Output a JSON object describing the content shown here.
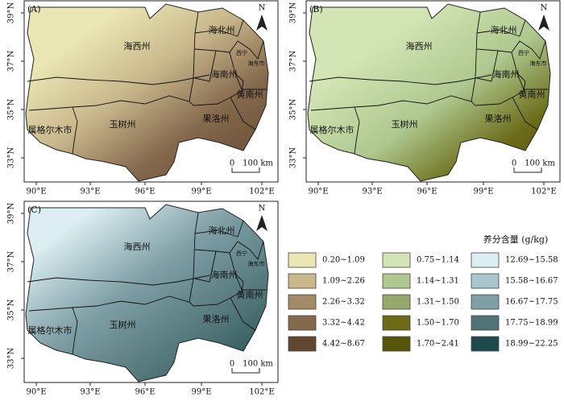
{
  "panels": [
    {
      "label": "(A)"
    },
    {
      "label": "(B)"
    },
    {
      "label": "(C)"
    }
  ],
  "lat_labels": [
    "39°N",
    "37°N",
    "35°N",
    "33°N"
  ],
  "lon_labels": [
    "90°E",
    "93°E",
    "96°E",
    "99°E",
    "102°E"
  ],
  "regions": [
    "海西州",
    "海北州",
    "西宁",
    "海东市",
    "海南州",
    "黄南州",
    "果洛州",
    "玉树州",
    "属格尔木市"
  ],
  "north": "N",
  "scale": {
    "start": "0",
    "end": "100 km"
  },
  "legend": {
    "title": "养分含量 (g/kg)",
    "columns": [
      [
        {
          "label": "0.20~1.09",
          "color": "#ebe7b4"
        },
        {
          "label": "1.09~2.26",
          "color": "#c9b88c"
        },
        {
          "label": "2.26~3.32",
          "color": "#a38b68"
        },
        {
          "label": "3.32~4.42",
          "color": "#85694d"
        },
        {
          "label": "4.42~8.67",
          "color": "#614630"
        }
      ],
      [
        {
          "label": "0.75~1.14",
          "color": "#d3e5b4"
        },
        {
          "label": "1.14~1.31",
          "color": "#aec88f"
        },
        {
          "label": "1.31~1.50",
          "color": "#97a86e"
        },
        {
          "label": "1.50~1.70",
          "color": "#6b6b18"
        },
        {
          "label": "1.70~2.41",
          "color": "#55560c"
        }
      ],
      [
        {
          "label": "12.69~15.58",
          "color": "#dceef2"
        },
        {
          "label": "15.58~16.67",
          "color": "#a8c6cc"
        },
        {
          "label": "16.67~17.75",
          "color": "#7e9fa5"
        },
        {
          "label": "17.75~18.99",
          "color": "#4f7377"
        },
        {
          "label": "18.99~22.25",
          "color": "#1f4a4c"
        }
      ]
    ]
  }
}
